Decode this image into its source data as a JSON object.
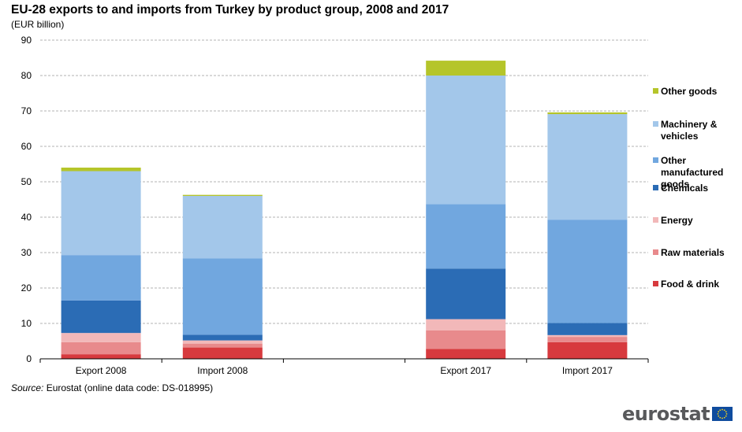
{
  "title": "EU-28 exports to and imports from Turkey by product group, 2008 and 2017",
  "subtitle": "(EUR billion)",
  "source_label": "Source:",
  "source_text": " Eurostat (online data code: DS-018995)",
  "logo": {
    "text": "eurostat",
    "flag_icon": "eu-flag-icon"
  },
  "chart_data": {
    "type": "bar",
    "stacked": true,
    "categories": [
      "Export 2008",
      "Import 2008",
      "",
      "Export 2017",
      "Import 2017"
    ],
    "ylim": [
      0,
      90
    ],
    "yticks": [
      0,
      10,
      20,
      30,
      40,
      50,
      60,
      70,
      80,
      90
    ],
    "grid": true,
    "legend_position": "right",
    "series": [
      {
        "name": "Food & drink",
        "color": "#d73a3e",
        "values": [
          1.3,
          3.2,
          null,
          2.8,
          4.7
        ]
      },
      {
        "name": "Raw materials",
        "color": "#e88a8c",
        "values": [
          3.4,
          1.1,
          null,
          5.2,
          1.5
        ]
      },
      {
        "name": "Energy",
        "color": "#f2b8b9",
        "values": [
          2.6,
          0.9,
          null,
          3.2,
          0.5
        ]
      },
      {
        "name": "Chemicals",
        "color": "#2b6cb5",
        "values": [
          9.2,
          1.6,
          null,
          14.3,
          3.4
        ]
      },
      {
        "name": "Other manufactured goods",
        "color": "#71a7df",
        "values": [
          12.8,
          21.6,
          null,
          18.2,
          29.2
        ]
      },
      {
        "name": "Machinery & vehicles",
        "color": "#a3c7ea",
        "values": [
          23.7,
          17.6,
          null,
          36.3,
          29.8
        ]
      },
      {
        "name": "Other goods",
        "color": "#b5c52a",
        "values": [
          1.0,
          0.3,
          null,
          4.2,
          0.5
        ]
      }
    ]
  }
}
